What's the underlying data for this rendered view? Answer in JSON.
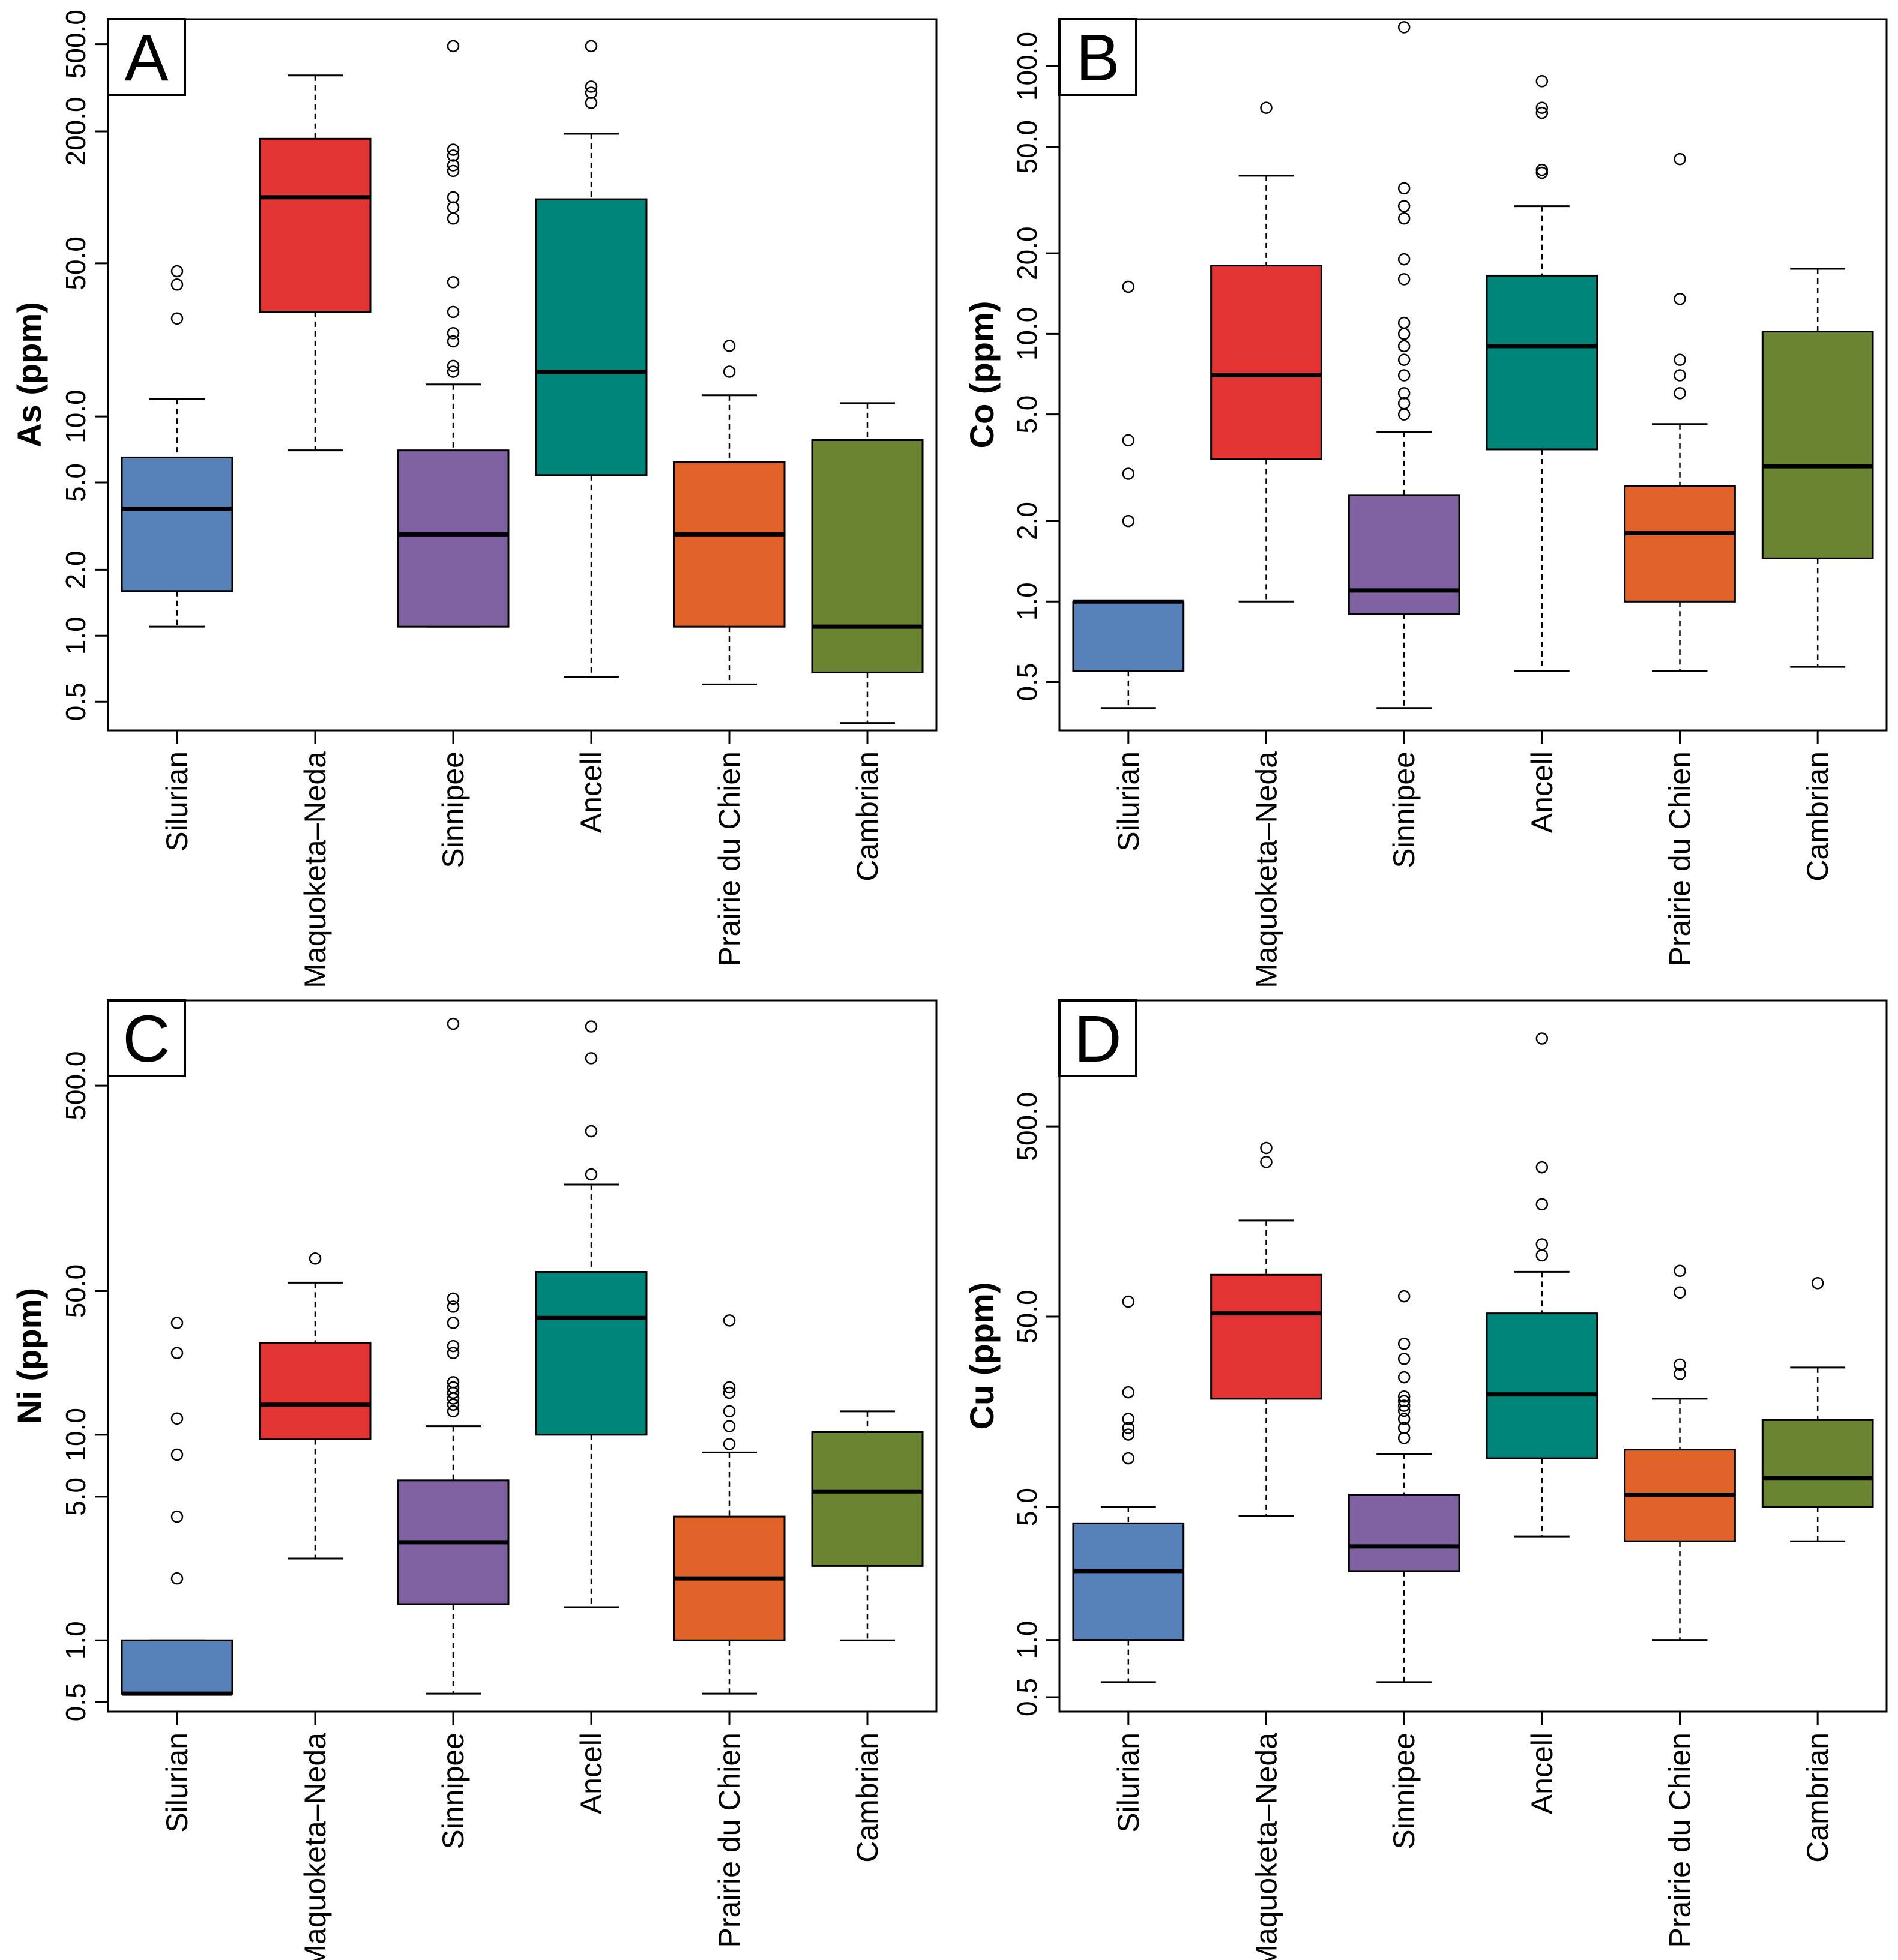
{
  "categories": [
    "Silurian",
    "Maquoketa–Neda",
    "Sinnipee",
    "Ancell",
    "Prairie du Chien",
    "Cambrian"
  ],
  "colors": {
    "Silurian": "#5782b9",
    "Maquoketa–Neda": "#e33634",
    "Sinnipee": "#8062a3",
    "Ancell": "#00857a",
    "Prairie du Chien": "#e2632a",
    "Cambrian": "#6b8431"
  },
  "chart_data": [
    {
      "panel": "A",
      "type": "box",
      "ylabel": "As (ppm)",
      "log_scale": true,
      "ylim": [
        0.37,
        650
      ],
      "yticks": [
        {
          "value": 0.5,
          "label": "0.5"
        },
        {
          "value": 1,
          "label": "1.0"
        },
        {
          "value": 2,
          "label": "2.0"
        },
        {
          "value": 5,
          "label": "5.0"
        },
        {
          "value": 10,
          "label": "10.0"
        },
        {
          "value": 50,
          "label": "50.0"
        },
        {
          "value": 200,
          "label": "200.0"
        },
        {
          "value": 500,
          "label": "500.0"
        }
      ],
      "boxes": [
        {
          "category": "Silurian",
          "lower_whisker": 1.1,
          "q1": 1.6,
          "median": 3.8,
          "q3": 6.5,
          "upper_whisker": 12,
          "outliers": [
            28,
            40,
            46
          ]
        },
        {
          "category": "Maquoketa–Neda",
          "lower_whisker": 7,
          "q1": 30,
          "median": 100,
          "q3": 185,
          "upper_whisker": 360,
          "outliers": []
        },
        {
          "category": "Sinnipee",
          "lower_whisker": 1.1,
          "q1": 1.1,
          "median": 2.9,
          "q3": 7,
          "upper_whisker": 14,
          "outliers": [
            16,
            17,
            22,
            24,
            30,
            41,
            80,
            90,
            100,
            132,
            140,
            155,
            165,
            490
          ]
        },
        {
          "category": "Ancell",
          "lower_whisker": 0.65,
          "q1": 5.4,
          "median": 16,
          "q3": 98,
          "upper_whisker": 195,
          "outliers": [
            270,
            300,
            320,
            490
          ]
        },
        {
          "category": "Prairie du Chien",
          "lower_whisker": 0.6,
          "q1": 1.1,
          "median": 2.9,
          "q3": 6.2,
          "upper_whisker": 12.5,
          "outliers": [
            16,
            21
          ]
        },
        {
          "category": "Cambrian",
          "lower_whisker": 0.4,
          "q1": 0.68,
          "median": 1.1,
          "q3": 7.8,
          "upper_whisker": 11.5,
          "outliers": []
        }
      ]
    },
    {
      "panel": "B",
      "type": "box",
      "ylabel": "Co (ppm)",
      "log_scale": true,
      "ylim": [
        0.33,
        150
      ],
      "yticks": [
        {
          "value": 0.5,
          "label": "0.5"
        },
        {
          "value": 1,
          "label": "1.0"
        },
        {
          "value": 2,
          "label": "2.0"
        },
        {
          "value": 5,
          "label": "5.0"
        },
        {
          "value": 10,
          "label": "10.0"
        },
        {
          "value": 20,
          "label": "20.0"
        },
        {
          "value": 50,
          "label": "50.0"
        },
        {
          "value": 100,
          "label": "100.0"
        }
      ],
      "boxes": [
        {
          "category": "Silurian",
          "lower_whisker": 0.4,
          "q1": 0.55,
          "median": 1.0,
          "q3": 1.0,
          "upper_whisker": 1.0,
          "outliers": [
            2,
            3,
            4,
            15
          ]
        },
        {
          "category": "Maquoketa–Neda",
          "lower_whisker": 1.0,
          "q1": 3.4,
          "median": 7,
          "q3": 18,
          "upper_whisker": 39,
          "outliers": [
            70
          ]
        },
        {
          "category": "Sinnipee",
          "lower_whisker": 0.4,
          "q1": 0.9,
          "median": 1.1,
          "q3": 2.5,
          "upper_whisker": 4.3,
          "outliers": [
            5,
            5.5,
            6,
            7,
            8,
            9,
            10,
            11,
            16,
            19,
            27,
            30,
            35,
            140
          ]
        },
        {
          "category": "Ancell",
          "lower_whisker": 0.55,
          "q1": 3.7,
          "median": 9,
          "q3": 16.5,
          "upper_whisker": 30,
          "outliers": [
            40,
            41,
            67,
            70,
            88
          ]
        },
        {
          "category": "Prairie du Chien",
          "lower_whisker": 0.55,
          "q1": 1.0,
          "median": 1.8,
          "q3": 2.7,
          "upper_whisker": 4.6,
          "outliers": [
            6,
            7,
            8,
            13.5,
            45
          ]
        },
        {
          "category": "Cambrian",
          "lower_whisker": 0.57,
          "q1": 1.45,
          "median": 3.2,
          "q3": 10.2,
          "upper_whisker": 17.5,
          "outliers": []
        }
      ]
    },
    {
      "panel": "C",
      "type": "box",
      "ylabel": "Ni (ppm)",
      "log_scale": true,
      "ylim": [
        0.45,
        1300
      ],
      "yticks": [
        {
          "value": 0.5,
          "label": "0.5"
        },
        {
          "value": 1,
          "label": "1.0"
        },
        {
          "value": 5,
          "label": "5.0"
        },
        {
          "value": 10,
          "label": "10.0"
        },
        {
          "value": 50,
          "label": "50.0"
        },
        {
          "value": 500,
          "label": "500.0"
        }
      ],
      "boxes": [
        {
          "category": "Silurian",
          "lower_whisker": 0.55,
          "q1": 0.55,
          "median": 0.55,
          "q3": 1.0,
          "upper_whisker": 1.0,
          "outliers": [
            2,
            4,
            8,
            12,
            25,
            35
          ]
        },
        {
          "category": "Maquoketa–Neda",
          "lower_whisker": 2.5,
          "q1": 9.5,
          "median": 14,
          "q3": 28,
          "upper_whisker": 55,
          "outliers": [
            72
          ]
        },
        {
          "category": "Sinnipee",
          "lower_whisker": 0.55,
          "q1": 1.5,
          "median": 3,
          "q3": 6,
          "upper_whisker": 11,
          "outliers": [
            13,
            14,
            15,
            16,
            17,
            18,
            25,
            27,
            35,
            42,
            46,
            1000
          ]
        },
        {
          "category": "Ancell",
          "lower_whisker": 1.45,
          "q1": 10,
          "median": 37,
          "q3": 62,
          "upper_whisker": 165,
          "outliers": [
            185,
            300,
            680,
            970
          ]
        },
        {
          "category": "Prairie du Chien",
          "lower_whisker": 0.55,
          "q1": 1.0,
          "median": 2.0,
          "q3": 4.0,
          "upper_whisker": 8.2,
          "outliers": [
            9,
            11,
            13,
            16,
            17,
            36
          ]
        },
        {
          "category": "Cambrian",
          "lower_whisker": 1.0,
          "q1": 2.3,
          "median": 5.3,
          "q3": 10.3,
          "upper_whisker": 13,
          "outliers": []
        }
      ]
    },
    {
      "panel": "D",
      "type": "box",
      "ylabel": "Cu (ppm)",
      "log_scale": true,
      "ylim": [
        0.42,
        2300
      ],
      "yticks": [
        {
          "value": 0.5,
          "label": "0.5"
        },
        {
          "value": 1,
          "label": "1.0"
        },
        {
          "value": 5,
          "label": "5.0"
        },
        {
          "value": 50,
          "label": "50.0"
        },
        {
          "value": 500,
          "label": "500.0"
        }
      ],
      "boxes": [
        {
          "category": "Silurian",
          "lower_whisker": 0.6,
          "q1": 1.0,
          "median": 2.3,
          "q3": 4.1,
          "upper_whisker": 5.0,
          "outliers": [
            9,
            12,
            13,
            14.5,
            20,
            60
          ]
        },
        {
          "category": "Maquoketa–Neda",
          "lower_whisker": 4.5,
          "q1": 18.5,
          "median": 52,
          "q3": 83,
          "upper_whisker": 160,
          "outliers": [
            325,
            385
          ]
        },
        {
          "category": "Sinnipee",
          "lower_whisker": 0.6,
          "q1": 2.3,
          "median": 3.1,
          "q3": 5.8,
          "upper_whisker": 9.5,
          "outliers": [
            11.5,
            13,
            14.5,
            16,
            17,
            18,
            19,
            24,
            30,
            36,
            64
          ]
        },
        {
          "category": "Ancell",
          "lower_whisker": 3.5,
          "q1": 9.0,
          "median": 19.5,
          "q3": 52,
          "upper_whisker": 86,
          "outliers": [
            105,
            120,
            195,
            305,
            1450
          ]
        },
        {
          "category": "Prairie du Chien",
          "lower_whisker": 1.0,
          "q1": 3.3,
          "median": 5.8,
          "q3": 10.0,
          "upper_whisker": 18.5,
          "outliers": [
            25,
            28,
            67,
            87
          ]
        },
        {
          "category": "Cambrian",
          "lower_whisker": 3.3,
          "q1": 5.0,
          "median": 7.1,
          "q3": 14.3,
          "upper_whisker": 27,
          "outliers": [
            75
          ]
        }
      ]
    }
  ]
}
